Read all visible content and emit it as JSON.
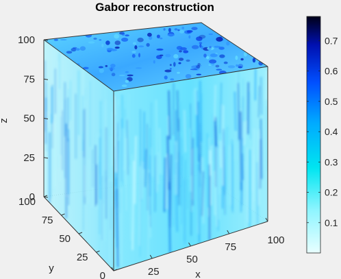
{
  "chart_data": {
    "type": "volume",
    "title": "Gabor reconstruction",
    "xlabel": "x",
    "ylabel": "y",
    "zlabel": "z",
    "xlim": [
      0,
      100
    ],
    "ylim": [
      0,
      100
    ],
    "zlim": [
      0,
      100
    ],
    "xticks": [
      "0",
      "25",
      "50",
      "75",
      "100"
    ],
    "yticks": [
      "0",
      "25",
      "50",
      "75",
      "100"
    ],
    "zticks": [
      "0",
      "25",
      "50",
      "75",
      "100"
    ],
    "colorbar": {
      "colormap": "cyan-to-black (jet-like upper half)",
      "range": [
        0,
        0.78
      ],
      "ticks": [
        "0.1",
        "0.2",
        "0.3",
        "0.4",
        "0.5",
        "0.6",
        "0.7"
      ],
      "tick_values": [
        0.1,
        0.2,
        0.3,
        0.4,
        0.5,
        0.6,
        0.7
      ]
    },
    "grid": false,
    "colors": {
      "background": "#f0f0f0",
      "volume_base": "#6fe6ff",
      "volume_mid": "#33c8ff",
      "volume_hot": "#1a3cf0",
      "edge": "#333333"
    }
  }
}
